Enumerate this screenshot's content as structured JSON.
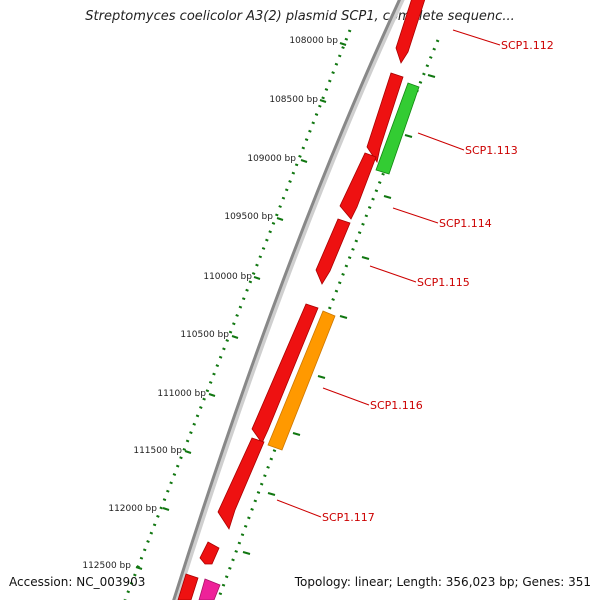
{
  "title": "Streptomyces coelicolor A3(2) plasmid SCP1, complete sequenc...",
  "footer": {
    "accession": "Accession: NC_003903",
    "summary": "Topology: linear; Length: 356,023 bp; Genes: 351"
  },
  "ticks": [
    "108000 bp",
    "108500 bp",
    "109000 bp",
    "109500 bp",
    "110000 bp",
    "110500 bp",
    "111000 bp",
    "111500 bp",
    "112000 bp",
    "112500 bp"
  ],
  "genes": [
    {
      "label": "SCP1.112",
      "color": "#ee1111"
    },
    {
      "label": "SCP1.113",
      "color": "#33cc33"
    },
    {
      "label": "SCP1.114",
      "color": "#ee1111"
    },
    {
      "label": "SCP1.115",
      "color": "#ee1111"
    },
    {
      "label": "SCP1.116",
      "color": "#ff9900"
    },
    {
      "label": "SCP1.117",
      "color": "#ee1111"
    }
  ],
  "colors": {
    "cds": "#ee1111",
    "rna": "#33cc33",
    "orf": "#ff9900",
    "other": "#ee2299",
    "backbone": "#888888",
    "tick": "#117711",
    "label": "#cc0000"
  }
}
